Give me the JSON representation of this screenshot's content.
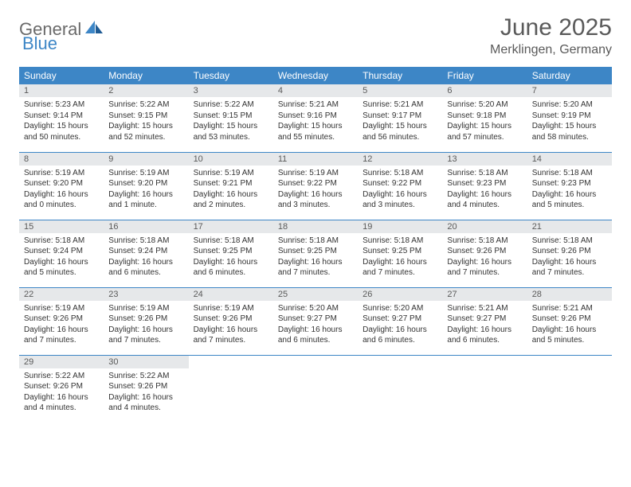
{
  "logo": {
    "text1": "General",
    "text2": "Blue"
  },
  "title": "June 2025",
  "location": "Merklingen, Germany",
  "colors": {
    "header_bg": "#3d86c6",
    "header_text": "#ffffff",
    "daynum_bg": "#e6e8ea",
    "border": "#3d86c6",
    "logo_gray": "#6a6a6a",
    "logo_blue": "#3d86c6",
    "title_color": "#5a5a5a"
  },
  "weekdays": [
    "Sunday",
    "Monday",
    "Tuesday",
    "Wednesday",
    "Thursday",
    "Friday",
    "Saturday"
  ],
  "weeks": [
    [
      {
        "n": "1",
        "sr": "Sunrise: 5:23 AM",
        "ss": "Sunset: 9:14 PM",
        "dl": "Daylight: 15 hours and 50 minutes."
      },
      {
        "n": "2",
        "sr": "Sunrise: 5:22 AM",
        "ss": "Sunset: 9:15 PM",
        "dl": "Daylight: 15 hours and 52 minutes."
      },
      {
        "n": "3",
        "sr": "Sunrise: 5:22 AM",
        "ss": "Sunset: 9:15 PM",
        "dl": "Daylight: 15 hours and 53 minutes."
      },
      {
        "n": "4",
        "sr": "Sunrise: 5:21 AM",
        "ss": "Sunset: 9:16 PM",
        "dl": "Daylight: 15 hours and 55 minutes."
      },
      {
        "n": "5",
        "sr": "Sunrise: 5:21 AM",
        "ss": "Sunset: 9:17 PM",
        "dl": "Daylight: 15 hours and 56 minutes."
      },
      {
        "n": "6",
        "sr": "Sunrise: 5:20 AM",
        "ss": "Sunset: 9:18 PM",
        "dl": "Daylight: 15 hours and 57 minutes."
      },
      {
        "n": "7",
        "sr": "Sunrise: 5:20 AM",
        "ss": "Sunset: 9:19 PM",
        "dl": "Daylight: 15 hours and 58 minutes."
      }
    ],
    [
      {
        "n": "8",
        "sr": "Sunrise: 5:19 AM",
        "ss": "Sunset: 9:20 PM",
        "dl": "Daylight: 16 hours and 0 minutes."
      },
      {
        "n": "9",
        "sr": "Sunrise: 5:19 AM",
        "ss": "Sunset: 9:20 PM",
        "dl": "Daylight: 16 hours and 1 minute."
      },
      {
        "n": "10",
        "sr": "Sunrise: 5:19 AM",
        "ss": "Sunset: 9:21 PM",
        "dl": "Daylight: 16 hours and 2 minutes."
      },
      {
        "n": "11",
        "sr": "Sunrise: 5:19 AM",
        "ss": "Sunset: 9:22 PM",
        "dl": "Daylight: 16 hours and 3 minutes."
      },
      {
        "n": "12",
        "sr": "Sunrise: 5:18 AM",
        "ss": "Sunset: 9:22 PM",
        "dl": "Daylight: 16 hours and 3 minutes."
      },
      {
        "n": "13",
        "sr": "Sunrise: 5:18 AM",
        "ss": "Sunset: 9:23 PM",
        "dl": "Daylight: 16 hours and 4 minutes."
      },
      {
        "n": "14",
        "sr": "Sunrise: 5:18 AM",
        "ss": "Sunset: 9:23 PM",
        "dl": "Daylight: 16 hours and 5 minutes."
      }
    ],
    [
      {
        "n": "15",
        "sr": "Sunrise: 5:18 AM",
        "ss": "Sunset: 9:24 PM",
        "dl": "Daylight: 16 hours and 5 minutes."
      },
      {
        "n": "16",
        "sr": "Sunrise: 5:18 AM",
        "ss": "Sunset: 9:24 PM",
        "dl": "Daylight: 16 hours and 6 minutes."
      },
      {
        "n": "17",
        "sr": "Sunrise: 5:18 AM",
        "ss": "Sunset: 9:25 PM",
        "dl": "Daylight: 16 hours and 6 minutes."
      },
      {
        "n": "18",
        "sr": "Sunrise: 5:18 AM",
        "ss": "Sunset: 9:25 PM",
        "dl": "Daylight: 16 hours and 7 minutes."
      },
      {
        "n": "19",
        "sr": "Sunrise: 5:18 AM",
        "ss": "Sunset: 9:25 PM",
        "dl": "Daylight: 16 hours and 7 minutes."
      },
      {
        "n": "20",
        "sr": "Sunrise: 5:18 AM",
        "ss": "Sunset: 9:26 PM",
        "dl": "Daylight: 16 hours and 7 minutes."
      },
      {
        "n": "21",
        "sr": "Sunrise: 5:18 AM",
        "ss": "Sunset: 9:26 PM",
        "dl": "Daylight: 16 hours and 7 minutes."
      }
    ],
    [
      {
        "n": "22",
        "sr": "Sunrise: 5:19 AM",
        "ss": "Sunset: 9:26 PM",
        "dl": "Daylight: 16 hours and 7 minutes."
      },
      {
        "n": "23",
        "sr": "Sunrise: 5:19 AM",
        "ss": "Sunset: 9:26 PM",
        "dl": "Daylight: 16 hours and 7 minutes."
      },
      {
        "n": "24",
        "sr": "Sunrise: 5:19 AM",
        "ss": "Sunset: 9:26 PM",
        "dl": "Daylight: 16 hours and 7 minutes."
      },
      {
        "n": "25",
        "sr": "Sunrise: 5:20 AM",
        "ss": "Sunset: 9:27 PM",
        "dl": "Daylight: 16 hours and 6 minutes."
      },
      {
        "n": "26",
        "sr": "Sunrise: 5:20 AM",
        "ss": "Sunset: 9:27 PM",
        "dl": "Daylight: 16 hours and 6 minutes."
      },
      {
        "n": "27",
        "sr": "Sunrise: 5:21 AM",
        "ss": "Sunset: 9:27 PM",
        "dl": "Daylight: 16 hours and 6 minutes."
      },
      {
        "n": "28",
        "sr": "Sunrise: 5:21 AM",
        "ss": "Sunset: 9:26 PM",
        "dl": "Daylight: 16 hours and 5 minutes."
      }
    ],
    [
      {
        "n": "29",
        "sr": "Sunrise: 5:22 AM",
        "ss": "Sunset: 9:26 PM",
        "dl": "Daylight: 16 hours and 4 minutes."
      },
      {
        "n": "30",
        "sr": "Sunrise: 5:22 AM",
        "ss": "Sunset: 9:26 PM",
        "dl": "Daylight: 16 hours and 4 minutes."
      },
      null,
      null,
      null,
      null,
      null
    ]
  ]
}
